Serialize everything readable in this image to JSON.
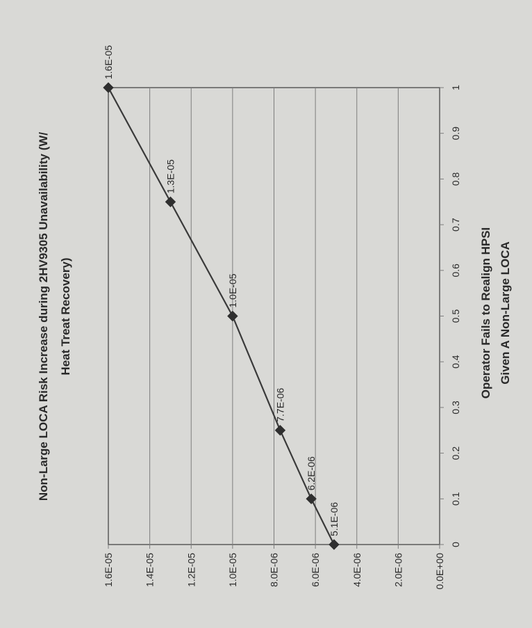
{
  "chart_data": {
    "type": "line",
    "title": "Non-Large LOCA Risk Increase during 2HV9305 Unavailability (W/ Heat Treat Recovery)",
    "title_lines": [
      "Non-Large LOCA Risk Increase during 2HV9305 Unavailability (W/",
      "Heat Treat Recovery)"
    ],
    "xlabel": "Operator Fails to Realign HPSI Given A Non-Large LOCA",
    "xlabel_lines": [
      "Operator Fails to Realign HPSI",
      "Given A Non-Large LOCA"
    ],
    "ylabel": "",
    "orientation": "rotated 90deg counter-clockwise",
    "x_ticks": [
      0,
      0.1,
      0.2,
      0.3,
      0.4,
      0.5,
      0.6,
      0.7,
      0.8,
      0.9,
      1
    ],
    "x_tick_labels": [
      "0",
      "0.1",
      "0.2",
      "0.3",
      "0.4",
      "0.5",
      "0.6",
      "0.7",
      "0.8",
      "0.9",
      "1"
    ],
    "y_ticks": [
      0,
      2e-06,
      4e-06,
      6e-06,
      8e-06,
      1e-05,
      1.2e-05,
      1.4e-05,
      1.6e-05
    ],
    "y_tick_labels": [
      "0.0E+00",
      "2.0E-06",
      "4.0E-06",
      "6.0E-06",
      "8.0E-06",
      "1.0E-05",
      "1.2E-05",
      "1.4E-05",
      "1.6E-05"
    ],
    "xlim": [
      0,
      1
    ],
    "ylim": [
      0,
      1.6e-05
    ],
    "grid": "horizontal",
    "legend": "none",
    "series": [
      {
        "x": [
          0,
          0.1,
          0.25,
          0.5,
          0.75,
          1.0
        ],
        "values": [
          5.1e-06,
          6.2e-06,
          7.7e-06,
          1e-05,
          1.3e-05,
          1.6e-05
        ],
        "data_labels": [
          "5.1E-06",
          "6.2E-06",
          "7.7E-06",
          "1.0E-05",
          "1.3E-05",
          "1.6E-05"
        ],
        "marker": "diamond"
      }
    ],
    "colors": {
      "line": "#3a3a3a",
      "marker": "#2f2f2f",
      "grid": "#7d7d7d",
      "text": "#2a2a2a",
      "background": "#d9d9d6"
    }
  }
}
